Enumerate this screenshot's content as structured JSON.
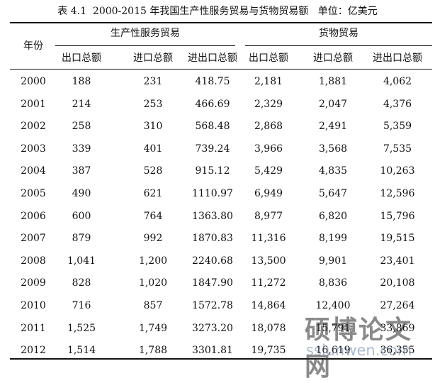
{
  "caption": "表 4.1  2000-2015 年我国生产性服务贸易与货物贸易额   单位：亿美元",
  "headers": {
    "year": "年份",
    "group_services": "生产性服务贸易",
    "group_goods": "货物贸易",
    "cols": [
      "出口总额",
      "进口总额",
      "进出口总额",
      "出口总额",
      "进口总额",
      "进出口总额"
    ]
  },
  "rows": [
    [
      "2000",
      "188",
      "231",
      "418.75",
      "2,181",
      "1,881",
      "4,062"
    ],
    [
      "2001",
      "214",
      "253",
      "466.69",
      "2,329",
      "2,047",
      "4,376"
    ],
    [
      "2002",
      "258",
      "310",
      "568.48",
      "2,868",
      "2,491",
      "5,359"
    ],
    [
      "2003",
      "339",
      "401",
      "739.24",
      "3,966",
      "3,568",
      "7,535"
    ],
    [
      "2004",
      "387",
      "528",
      "915.12",
      "5,429",
      "4,835",
      "10,263"
    ],
    [
      "2005",
      "490",
      "621",
      "1110.97",
      "6,949",
      "5,647",
      "12,596"
    ],
    [
      "2006",
      "600",
      "764",
      "1363.80",
      "8,977",
      "6,820",
      "15,796"
    ],
    [
      "2007",
      "879",
      "992",
      "1870.83",
      "11,316",
      "8,199",
      "19,515"
    ],
    [
      "2008",
      "1,041",
      "1,200",
      "2240.68",
      "13,500",
      "9,901",
      "23,401"
    ],
    [
      "2009",
      "828",
      "1,020",
      "1847.90",
      "11,272",
      "8,836",
      "20,108"
    ],
    [
      "2010",
      "716",
      "857",
      "1572.78",
      "14,864",
      "12,400",
      "27,264"
    ],
    [
      "2011",
      "1,525",
      "1,749",
      "3273.20",
      "18,078",
      "15,791",
      "33,869"
    ],
    [
      "2012",
      "1,514",
      "1,788",
      "3301.81",
      "19,735",
      "16,619",
      "36,355"
    ]
  ],
  "watermark": {
    "text": "硕博论文网",
    "url": "sslunwen.com"
  }
}
